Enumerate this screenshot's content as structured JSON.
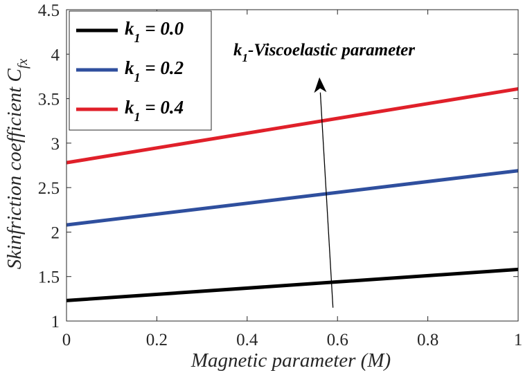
{
  "chart_data": {
    "type": "line",
    "xlabel": "Magnetic parameter (M)",
    "ylabel_main": "Skinfriction coefficient C",
    "ylabel_sub": "fx",
    "xlim": [
      0,
      1
    ],
    "ylim": [
      1,
      4.5
    ],
    "xticks": [
      0,
      0.2,
      0.4,
      0.6,
      0.8,
      1
    ],
    "xtick_labels": [
      "0",
      "0.2",
      "0.4",
      "0.6",
      "0.8",
      "1"
    ],
    "yticks": [
      1,
      1.5,
      2,
      2.5,
      3,
      3.5,
      4,
      4.5
    ],
    "ytick_labels": [
      "1",
      "1.5",
      "2",
      "2.5",
      "3",
      "3.5",
      "4",
      "4.5"
    ],
    "grid": false,
    "legend_placement": "top-left",
    "x": [
      0,
      1
    ],
    "series": [
      {
        "name_main": "k",
        "name_sub": "1",
        "name_rest": " = 0.0",
        "color": "#000000",
        "values": [
          1.23,
          1.58
        ]
      },
      {
        "name_main": "k",
        "name_sub": "1",
        "name_rest": " = 0.2",
        "color": "#2f4f9e",
        "values": [
          2.08,
          2.69
        ]
      },
      {
        "name_main": "k",
        "name_sub": "1",
        "name_rest": " = 0.4",
        "color": "#e0202a",
        "values": [
          2.78,
          3.61
        ]
      }
    ],
    "annotation": {
      "text_main": "k",
      "text_sub": "1",
      "text_rest": "-Viscoelastic parameter",
      "arrow_from": [
        0.59,
        1.15
      ],
      "arrow_to": [
        0.56,
        3.74
      ]
    }
  }
}
